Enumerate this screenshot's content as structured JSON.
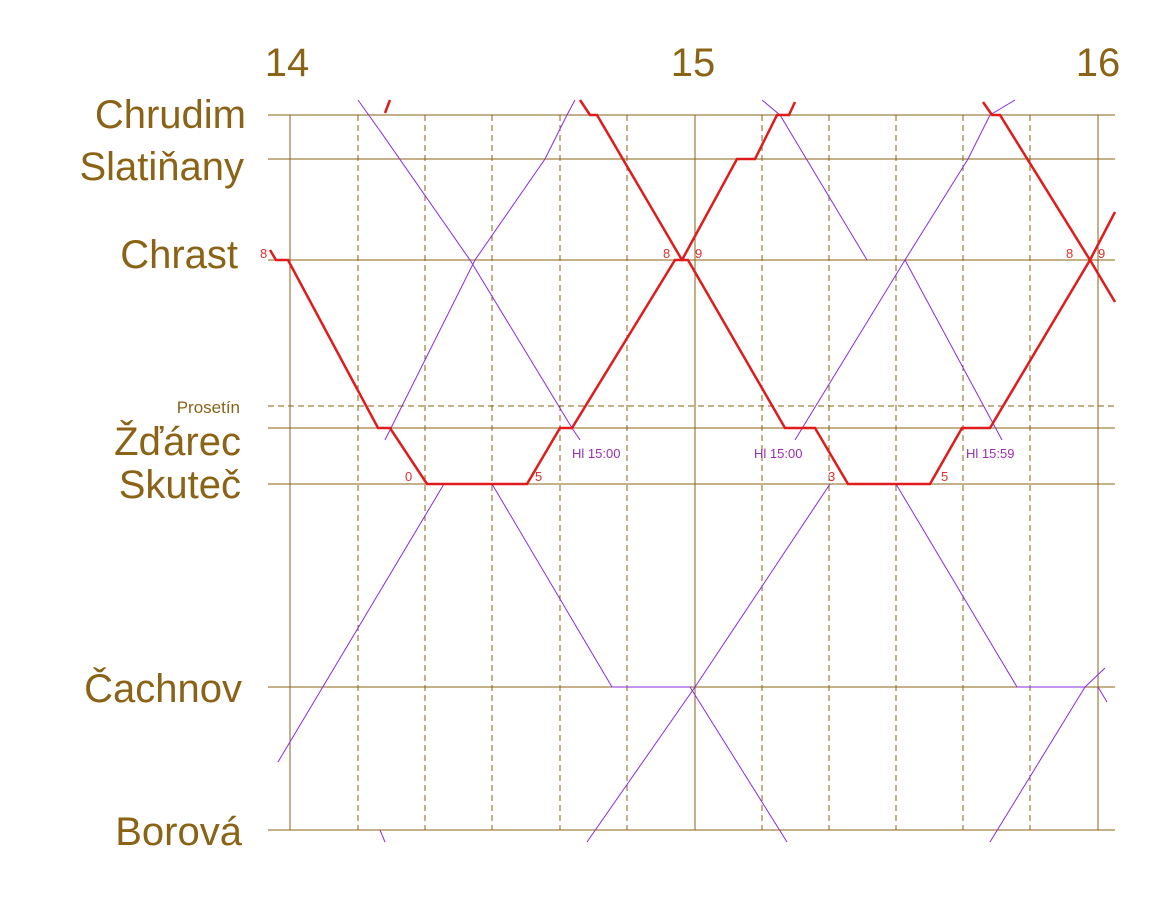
{
  "hours": [
    "14",
    "15",
    "16"
  ],
  "stations": [
    "Chrudim",
    "Slatiňany",
    "Chrast",
    "Žďárec",
    "Skuteč",
    "Čachnov",
    "Borová"
  ],
  "minor_station": "Prosetín",
  "train_numbers": [
    "8",
    "8",
    "9",
    "8",
    "9",
    "0",
    "5",
    "3",
    "5"
  ],
  "notes": [
    "Hl 15:00",
    "Hl 15:00",
    "Hl 15:59"
  ]
}
